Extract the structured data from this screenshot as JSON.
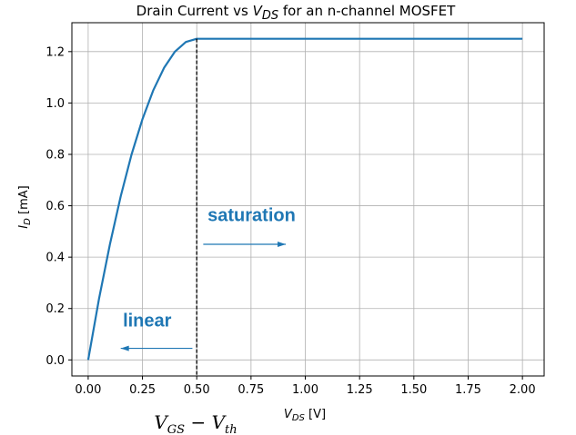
{
  "chart_data": {
    "type": "line",
    "title_main": "Drain Current vs ",
    "title_var": "V",
    "title_var_sub": "DS",
    "title_tail": " for an n-channel MOSFET",
    "xlabel_var": "V",
    "xlabel_sub": "DS",
    "xlabel_unit": " [V]",
    "ylabel_var": "I",
    "ylabel_sub": "D",
    "ylabel_unit": " [mA]",
    "xlim": [
      -0.075,
      2.1
    ],
    "ylim": [
      -0.0625,
      1.3125
    ],
    "x_ticks": [
      0.0,
      0.25,
      0.5,
      0.75,
      1.0,
      1.25,
      1.5,
      1.75,
      2.0
    ],
    "x_tick_labels": [
      "0.00",
      "0.25",
      "0.50",
      "0.75",
      "1.00",
      "1.25",
      "1.50",
      "1.75",
      "2.00"
    ],
    "y_ticks": [
      0.0,
      0.2,
      0.4,
      0.6,
      0.8,
      1.0,
      1.2
    ],
    "y_tick_labels": [
      "0.0",
      "0.2",
      "0.4",
      "0.6",
      "0.8",
      "1.0",
      "1.2"
    ],
    "grid": true,
    "series": [
      {
        "color": "#1f77b4",
        "x": [
          0.0,
          0.05,
          0.1,
          0.15,
          0.2,
          0.25,
          0.3,
          0.35,
          0.4,
          0.45,
          0.5,
          0.75,
          1.0,
          1.25,
          1.5,
          1.75,
          2.0
        ],
        "y": [
          0.0,
          0.2375,
          0.45,
          0.6375,
          0.8,
          0.9375,
          1.05,
          1.1375,
          1.2,
          1.2375,
          1.25,
          1.25,
          1.25,
          1.25,
          1.25,
          1.25,
          1.25
        ]
      }
    ],
    "vline": {
      "x": 0.5,
      "style": "dashed",
      "color": "#000000"
    },
    "annotations": [
      {
        "text": "saturation",
        "x": 0.55,
        "y": 0.54
      },
      {
        "text": "linear",
        "x": 0.16,
        "y": 0.13
      }
    ],
    "arrows": [
      {
        "from": [
          0.53,
          0.45
        ],
        "to": [
          0.91,
          0.45
        ]
      },
      {
        "from": [
          0.48,
          0.045
        ],
        "to": [
          0.15,
          0.045
        ]
      }
    ],
    "below_axis_label": {
      "v": "V",
      "v_sub": "GS",
      "minus": " − ",
      "vt": "V",
      "vt_sub": "th",
      "x": 0.5
    }
  }
}
